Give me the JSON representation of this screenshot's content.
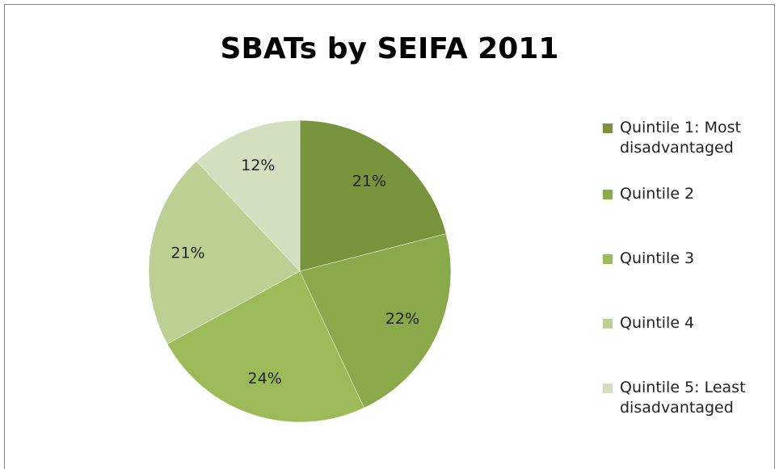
{
  "chart_data": {
    "type": "pie",
    "title": "SBATs by SEIFA 2011",
    "categories": [
      "Quintile 1: Most disadvantaged",
      "Quintile 2",
      "Quintile 3",
      "Quintile 4",
      "Quintile 5: Least disadvantaged"
    ],
    "values": [
      21,
      22,
      24,
      21,
      12
    ],
    "value_labels": [
      "21%",
      "22%",
      "24%",
      "21%",
      "12%"
    ],
    "colors": [
      "#77933c",
      "#8aa94b",
      "#9bbb59",
      "#bcd093",
      "#d3e0c0"
    ],
    "legend": "right"
  }
}
